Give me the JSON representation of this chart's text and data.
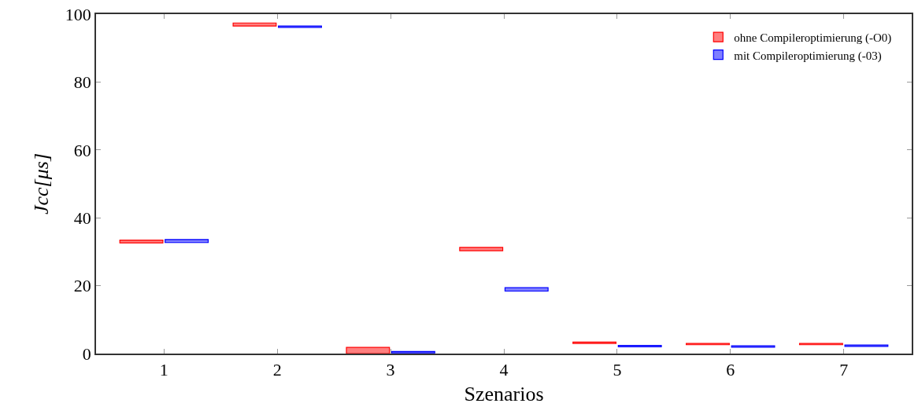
{
  "chart_data": {
    "type": "bar",
    "xlabel": "Szenarios",
    "ylabel": "Jcc[μs]",
    "categories": [
      "1",
      "2",
      "3",
      "4",
      "5",
      "6",
      "7"
    ],
    "series": [
      {
        "name": "ohne Compileroptimierung (-O0)",
        "color": "#ff0000",
        "base": [
          32.6,
          96.5,
          0,
          30.3,
          3.0,
          2.6,
          2.6
        ],
        "values": [
          0.8,
          0.9,
          1.8,
          1.0,
          0.4,
          0.4,
          0.4
        ]
      },
      {
        "name": "mit Compileroptimierung (-03)",
        "color": "#0000ff",
        "base": [
          32.7,
          96.1,
          0.2,
          18.4,
          2.0,
          1.9,
          2.1
        ],
        "values": [
          0.9,
          0.4,
          0.4,
          1.0,
          0.4,
          0.4,
          0.4
        ]
      }
    ],
    "ylim": [
      0,
      100
    ],
    "yticks": [
      0,
      20,
      40,
      60,
      80,
      100
    ],
    "grid": false,
    "legend": "top right"
  }
}
